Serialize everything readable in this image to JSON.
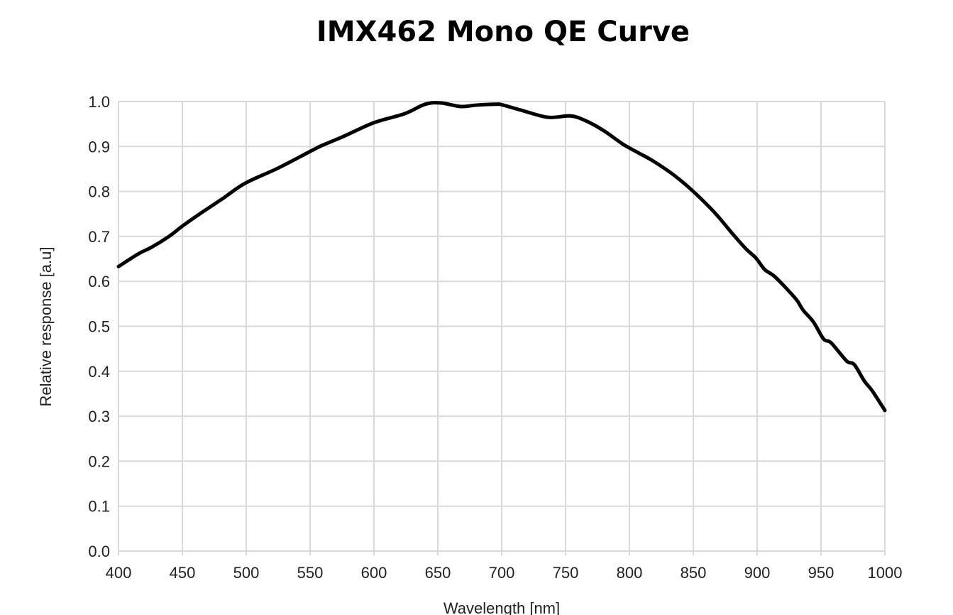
{
  "chart_data": {
    "type": "line",
    "title": "IMX462 Mono QE Curve",
    "xlabel": "Wavelength [nm]",
    "ylabel": "Relative response [a.u]",
    "xlim": [
      400,
      1000
    ],
    "ylim": [
      0.0,
      1.0
    ],
    "x_ticks": [
      "400",
      "450",
      "500",
      "550",
      "600",
      "650",
      "700",
      "750",
      "800",
      "850",
      "900",
      "950",
      "1000"
    ],
    "y_ticks": [
      "0.0",
      "0.1",
      "0.2",
      "0.3",
      "0.4",
      "0.5",
      "0.6",
      "0.7",
      "0.8",
      "0.9",
      "1.0"
    ],
    "grid": true,
    "line_color": "#000000",
    "grid_color": "#d9d9d9",
    "series": [
      {
        "x": [
          400,
          416,
          426,
          440,
          450,
          463,
          481,
          499,
          525,
          550,
          559,
          575,
          600,
          624,
          640,
          652,
          668,
          680,
          696,
          700,
          715,
          736,
          754,
          766,
          780,
          795,
          807,
          819,
          835,
          850,
          867,
          881,
          891,
          899,
          906,
          914,
          930,
          936,
          944,
          952,
          958,
          970,
          976,
          984,
          990,
          1000
        ],
        "y": [
          0.633,
          0.662,
          0.676,
          0.701,
          0.723,
          0.749,
          0.783,
          0.818,
          0.852,
          0.889,
          0.902,
          0.921,
          0.953,
          0.973,
          0.994,
          0.997,
          0.989,
          0.992,
          0.994,
          0.993,
          0.981,
          0.965,
          0.968,
          0.957,
          0.935,
          0.905,
          0.886,
          0.867,
          0.836,
          0.8,
          0.752,
          0.705,
          0.673,
          0.652,
          0.626,
          0.61,
          0.562,
          0.536,
          0.51,
          0.472,
          0.463,
          0.423,
          0.415,
          0.378,
          0.357,
          0.313
        ]
      }
    ]
  }
}
